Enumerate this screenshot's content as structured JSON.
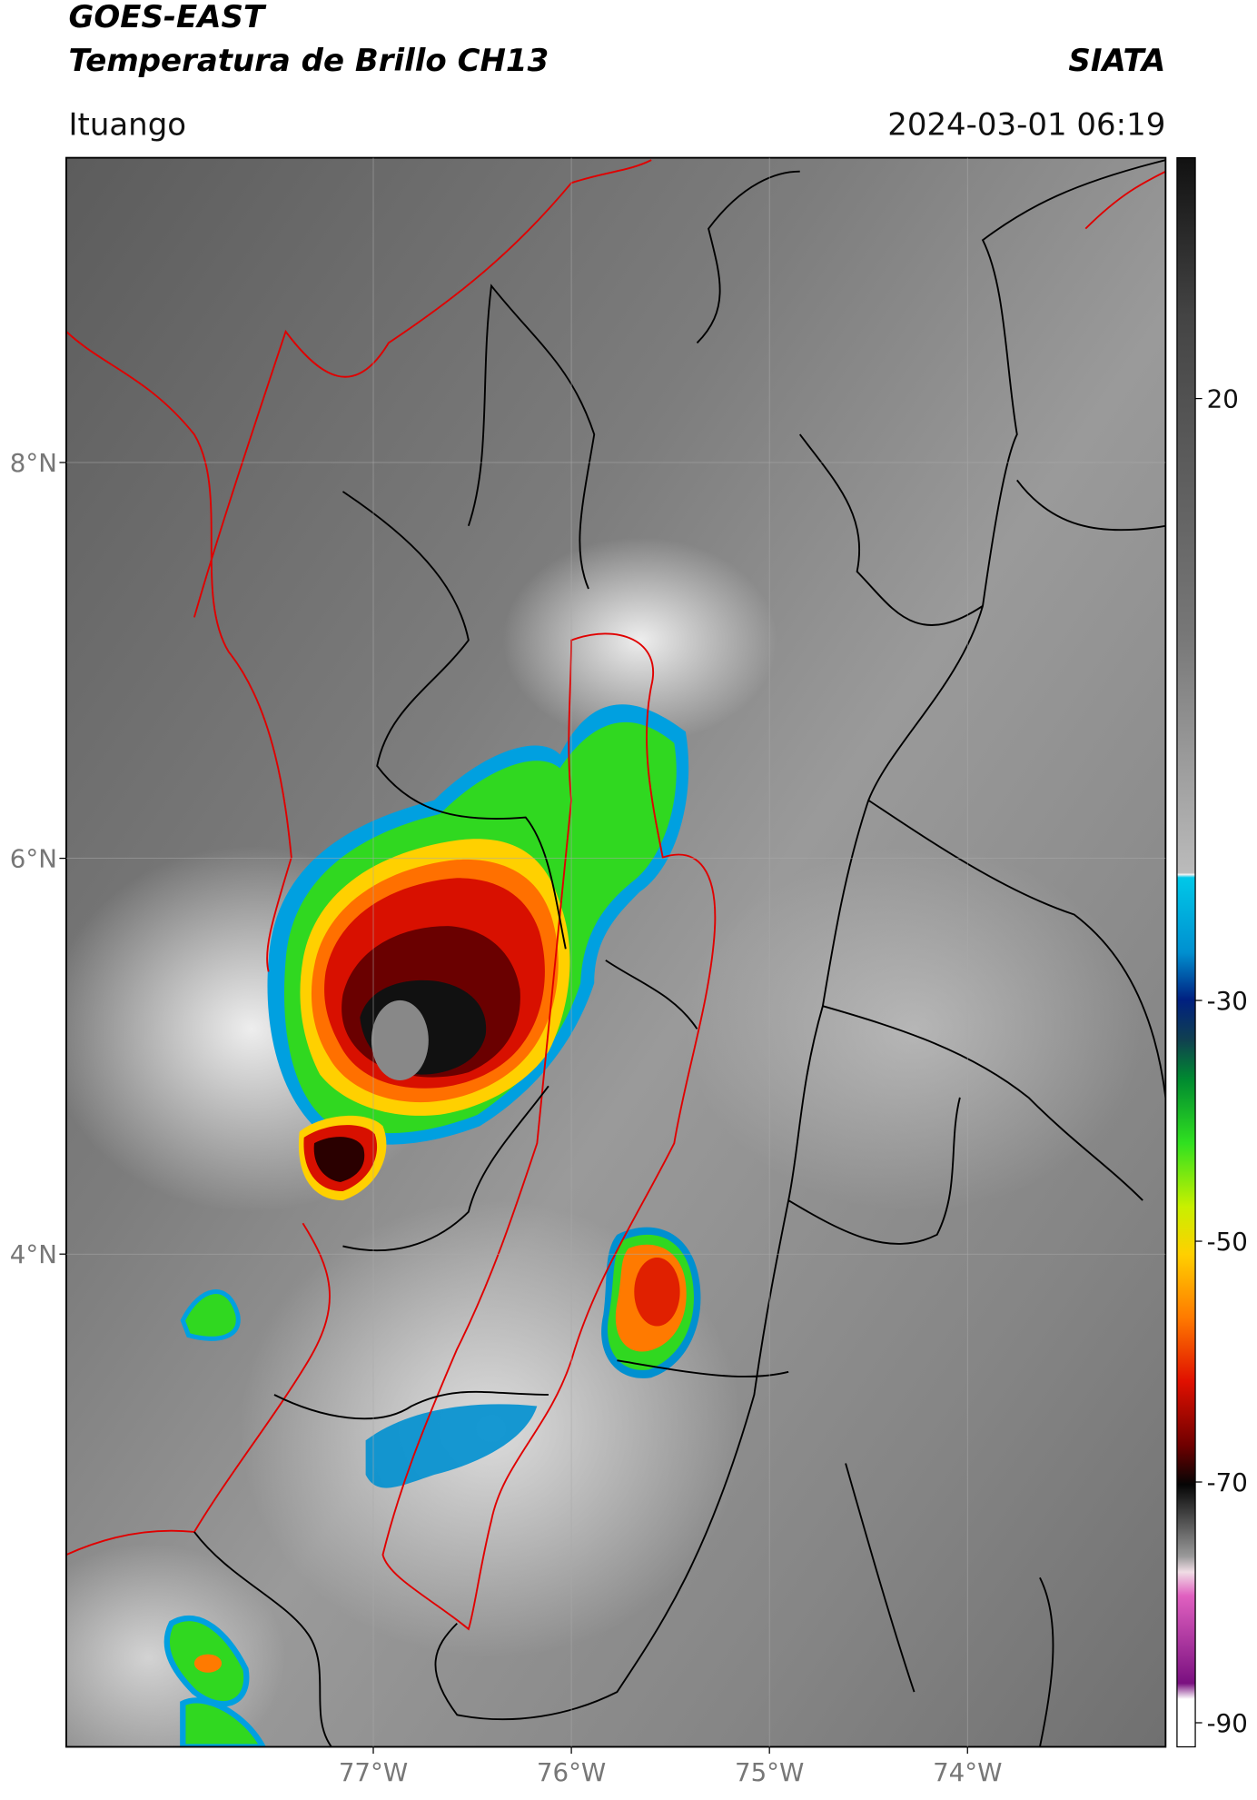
{
  "header": {
    "title": "GOES-EAST",
    "subtitle": "Temperatura de Brillo CH13",
    "organization": "SIATA",
    "location": "Ituango",
    "datetime": "2024-03-01 06:19"
  },
  "map": {
    "xlim": [
      -78.55,
      -73.0
    ],
    "ylim": [
      1.51,
      9.54
    ],
    "xticks": [
      {
        "value": -77,
        "label": "77°W"
      },
      {
        "value": -76,
        "label": "76°W"
      },
      {
        "value": -75,
        "label": "75°W"
      },
      {
        "value": -74,
        "label": "74°W"
      }
    ],
    "yticks": [
      {
        "value": 8,
        "label": "8°N"
      },
      {
        "value": 6,
        "label": "6°N"
      },
      {
        "value": 4,
        "label": "4°N"
      }
    ]
  },
  "colorbar": {
    "lim": [
      -92,
      40
    ],
    "ticks": [
      20,
      -30,
      -50,
      -70,
      -90
    ]
  }
}
